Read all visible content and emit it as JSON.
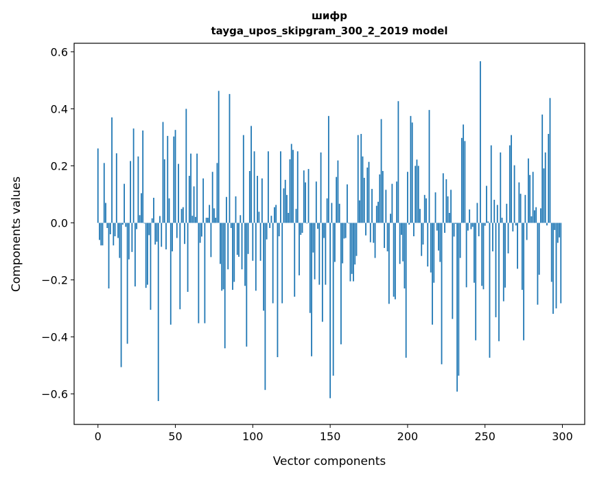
{
  "chart_data": {
    "type": "bar",
    "title": [
      "шифр",
      "tayga_upos_skipgram_300_2_2019 model"
    ],
    "xlabel": "Vector components",
    "ylabel": "Components values",
    "xlim": [
      -15.4,
      314.4
    ],
    "ylim": [
      -0.707,
      0.63
    ],
    "xticks": [
      0,
      50,
      100,
      150,
      200,
      250,
      300
    ],
    "xtick_labels": [
      "0",
      "50",
      "100",
      "150",
      "200",
      "250",
      "300"
    ],
    "yticks": [
      -0.6,
      -0.4,
      -0.2,
      0.0,
      0.2,
      0.4,
      0.6
    ],
    "ytick_labels": [
      "−0.6",
      "−0.4",
      "−0.2",
      "0.0",
      "0.2",
      "0.4",
      "0.6"
    ],
    "grid": false,
    "bar_color": "#1f77b4",
    "bar_width": 0.8,
    "values": [
      0.261,
      -0.06,
      -0.079,
      -0.079,
      0.21,
      0.07,
      -0.018,
      -0.23,
      -0.04,
      0.37,
      -0.079,
      -0.047,
      0.244,
      -0.053,
      -0.123,
      -0.506,
      -0.006,
      0.137,
      -0.014,
      -0.424,
      -0.128,
      0.217,
      -0.102,
      0.331,
      -0.223,
      -0.022,
      0.233,
      0.027,
      0.104,
      0.324,
      -0.002,
      -0.228,
      -0.217,
      -0.043,
      -0.305,
      0.016,
      0.088,
      -0.076,
      -0.066,
      -0.625,
      0.024,
      -0.084,
      0.354,
      0.223,
      -0.093,
      0.305,
      0.086,
      -0.357,
      -0.1,
      0.303,
      0.326,
      -0.053,
      0.207,
      -0.303,
      0.049,
      0.055,
      -0.074,
      0.4,
      -0.242,
      0.165,
      0.243,
      0.025,
      0.128,
      0.021,
      0.243,
      -0.352,
      -0.07,
      -0.048,
      0.156,
      -0.352,
      0.018,
      0.018,
      0.063,
      -0.12,
      0.179,
      0.051,
      0.018,
      0.21,
      0.463,
      -0.144,
      -0.238,
      -0.233,
      -0.44,
      0.091,
      -0.163,
      0.452,
      -0.018,
      -0.235,
      -0.207,
      0.093,
      -0.112,
      -0.119,
      0.027,
      -0.163,
      0.308,
      -0.221,
      -0.434,
      -0.109,
      0.182,
      0.34,
      -0.133,
      0.251,
      -0.238,
      0.165,
      0.039,
      -0.133,
      0.156,
      -0.308,
      -0.586,
      -0.058,
      0.251,
      -0.018,
      0.025,
      -0.282,
      0.055,
      0.063,
      -0.471,
      -0.047,
      0.251,
      -0.282,
      0.121,
      0.151,
      0.098,
      0.035,
      0.223,
      0.277,
      0.256,
      -0.259,
      0.049,
      0.251,
      -0.184,
      -0.042,
      -0.035,
      0.184,
      0.142,
      -0.002,
      0.189,
      -0.316,
      -0.468,
      -0.104,
      -0.198,
      0.145,
      -0.021,
      -0.217,
      0.247,
      -0.347,
      -0.053,
      -0.217,
      0.086,
      0.375,
      -0.615,
      0.07,
      -0.536,
      -0.137,
      0.161,
      0.219,
      0.067,
      -0.426,
      -0.142,
      -0.055,
      -0.053,
      0.135,
      -0.002,
      -0.205,
      -0.179,
      -0.205,
      -0.146,
      -0.116,
      0.308,
      0.079,
      0.312,
      0.233,
      0.158,
      -0.044,
      0.194,
      0.214,
      -0.068,
      0.119,
      -0.07,
      -0.123,
      0.06,
      0.074,
      0.17,
      0.364,
      0.182,
      -0.088,
      0.116,
      -0.1,
      -0.284,
      0.032,
      0.137,
      -0.259,
      -0.268,
      0.145,
      0.427,
      -0.144,
      -0.042,
      -0.135,
      -0.23,
      -0.473,
      0.179,
      -0.006,
      0.375,
      0.352,
      -0.047,
      0.2,
      0.222,
      0.2,
      0.049,
      -0.116,
      -0.076,
      0.098,
      0.086,
      -0.153,
      0.396,
      -0.174,
      -0.357,
      -0.21,
      0.107,
      -0.027,
      -0.097,
      -0.137,
      -0.496,
      0.174,
      -0.035,
      0.153,
      0.093,
      0.035,
      0.116,
      -0.337,
      -0.048,
      -0.003,
      -0.592,
      -0.536,
      -0.123,
      0.298,
      0.345,
      0.287,
      -0.226,
      -0.027,
      0.047,
      -0.022,
      -0.014,
      -0.21,
      -0.412,
      0.07,
      -0.047,
      0.567,
      -0.221,
      -0.233,
      -0.01,
      0.13,
      0.005,
      -0.473,
      0.272,
      -0.1,
      0.081,
      -0.331,
      0.063,
      -0.415,
      0.247,
      0.018,
      -0.275,
      -0.227,
      0.067,
      -0.107,
      0.272,
      0.308,
      -0.03,
      0.202,
      -0.009,
      -0.161,
      0.142,
      0.102,
      -0.235,
      -0.412,
      0.098,
      -0.06,
      0.226,
      0.168,
      0.023,
      0.179,
      0.044,
      0.055,
      -0.287,
      -0.182,
      0.051,
      0.38,
      0.191,
      0.247,
      -0.009,
      0.312,
      0.438,
      -0.207,
      -0.319,
      -0.025,
      -0.3,
      -0.07,
      -0.051,
      -0.282
    ]
  }
}
